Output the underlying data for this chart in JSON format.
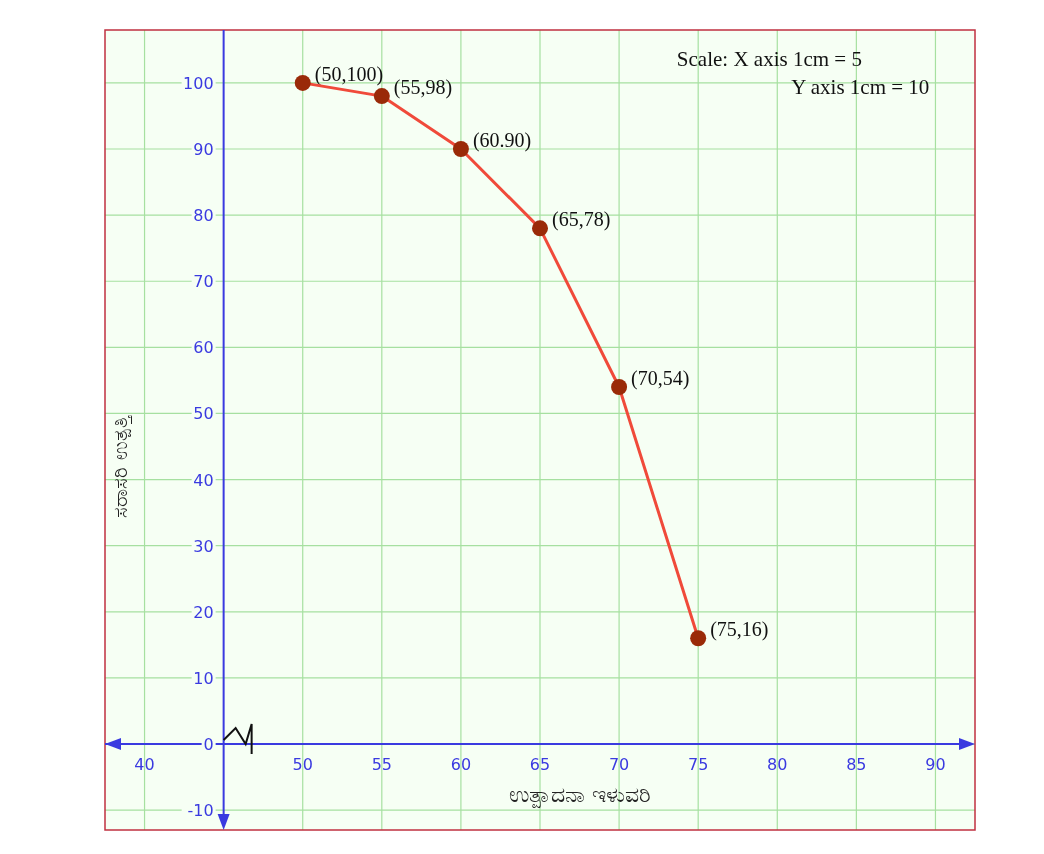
{
  "chart_data": {
    "type": "line",
    "xlabel": "ಉತ್ಪಾದನಾ ಇಳುವರಿ",
    "ylabel": "ಸರಾಸರಿ ಉತ್ಪತ್ತಿ",
    "annotations": [
      "Scale: X axis 1cm = 5",
      "Y axis 1cm = 10",
      {
        "text": "(50,100)",
        "x": 50,
        "y": 100
      },
      {
        "text": "(55,98)",
        "x": 55,
        "y": 98
      },
      {
        "text": "(60.90)",
        "x": 60,
        "y": 90
      },
      {
        "text": "(65,78)",
        "x": 65,
        "y": 78
      },
      {
        "text": "(70,54)",
        "x": 70,
        "y": 54
      },
      {
        "text": "(75,16)",
        "x": 75,
        "y": 16
      }
    ],
    "x": [
      50,
      55,
      60,
      65,
      70,
      75
    ],
    "series": [
      {
        "color": "#f04a3a",
        "values": [
          100,
          98,
          90,
          78,
          54,
          16
        ]
      }
    ],
    "marker": "circle",
    "line_style": "solid",
    "grid": true,
    "xlim": [
      37.5,
      92.5
    ],
    "ylim": [
      -13,
      108
    ],
    "xticks": [
      40,
      50,
      55,
      60,
      65,
      70,
      75,
      80,
      85,
      90
    ],
    "yticks": [
      -10,
      0,
      10,
      20,
      30,
      40,
      50,
      60,
      70,
      80,
      90,
      100
    ]
  }
}
